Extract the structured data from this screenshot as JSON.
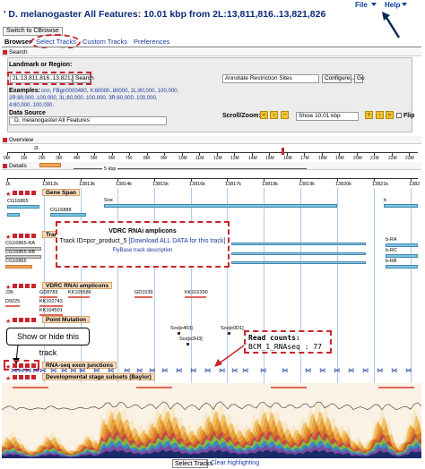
{
  "header": {
    "title": "' D. melanogaster All Features: 10.01 kbp from 2L:13,811,816..13,821,826",
    "menu": [
      "File",
      "Help"
    ],
    "switch_button": "Switch to CBrowse"
  },
  "tabs": [
    {
      "label": "Browser",
      "active": true
    },
    {
      "label": "Select Tracks",
      "active": false
    },
    {
      "label": "Custom Tracks",
      "active": false
    },
    {
      "label": "Preferences",
      "active": false
    }
  ],
  "search": {
    "section_label": "Search",
    "landmark_label": "Landmark or Region:",
    "landmark_value": "2L:13,811,816..13,821,826",
    "search_button": "Search",
    "annotate_select": "Annotate Restriction Sites",
    "configure_button": "Configure...",
    "go_button": "Go",
    "examples_label": "Examples:",
    "examples_line1": "cnn, FBgn0000490, X:60000..80000, 2L:80,000..100,000,",
    "examples_line2": "2R:80,000..100,000, 3L:80,000..100,000, 3R:80,000..100,000,",
    "examples_line3": "4:80,000..100,000.",
    "data_source_label": "Data Source",
    "data_source_value": "' D. melanogaster All Features",
    "scroll_zoom_label": "Scroll/Zoom:",
    "zoom_select": "Show 10.01 kbp",
    "flip_label": "Flip"
  },
  "overview": {
    "section_label": "Overview",
    "chrom": "2L",
    "ticks": [
      "0M",
      "1M",
      "2M",
      "3M",
      "4M",
      "5M",
      "6M",
      "7M",
      "8M",
      "9M",
      "10M",
      "11M",
      "12M",
      "13M",
      "14M",
      "15M",
      "16M",
      "17M",
      "18M",
      "19M",
      "20M",
      "21M",
      "22M",
      "23M"
    ]
  },
  "details": {
    "section_label": "Details",
    "scale_label": "5 kbp",
    "ticks": [
      "1k",
      "13812k",
      "13813k",
      "13814k",
      "13815k",
      "13816k",
      "13817k",
      "13818k",
      "13819k",
      "13820k",
      "13821k",
      "1382"
    ]
  },
  "tracks": {
    "gene_span": "Gene Span",
    "transcripts": "Transcripts",
    "vdrc": "VDRC RNAi amplicons",
    "point_mutation": "Point Mutation",
    "rnaseq": "RNA-seq exon junctions",
    "dev_stage": "Developmental stage subsets (Baylor)"
  },
  "gene_labels": {
    "soe": "Soe",
    "cg16865_top": "CG16865",
    "cg16888": "CG16888",
    "cg16865_ra": "CG16865-RA",
    "cg16865_rb": "CG16865-RB",
    "cg16865": "CG16865",
    "b": "b",
    "b_ra": "b-RA",
    "b_rc": "b-RC",
    "b_rb": "b-RB"
  },
  "amplicon_labels": [
    "GD8783",
    "KK105586",
    "GD1539",
    "KK102390",
    "D9225",
    "KK102743",
    "KK104501"
  ],
  "amplicon_prefix": "J36",
  "mutation_labels": [
    "Sos[e403]",
    "Sos[e2H3]",
    "Sos[e0D1]"
  ],
  "popup": {
    "title": "VDRC RNAi amplicons",
    "body": "Track ID=pcr_product_5",
    "download": "[Download ALL DATA for this track]",
    "link": "FlyBase track description"
  },
  "callouts": {
    "show_hide": "Show or hide this track",
    "read_counts_label": "Read counts:",
    "read_counts_value": "BCM_1_RNAseq : 77"
  },
  "footer": {
    "select_tracks": "Select Tracks",
    "clear_highlighting": "Clear highlighting"
  },
  "colors": {
    "accent_red": "#c8242b",
    "link_blue": "#1a3aa0",
    "gene_blue": "#7fc4e0",
    "track_title_bg": "#f6dcc0"
  }
}
